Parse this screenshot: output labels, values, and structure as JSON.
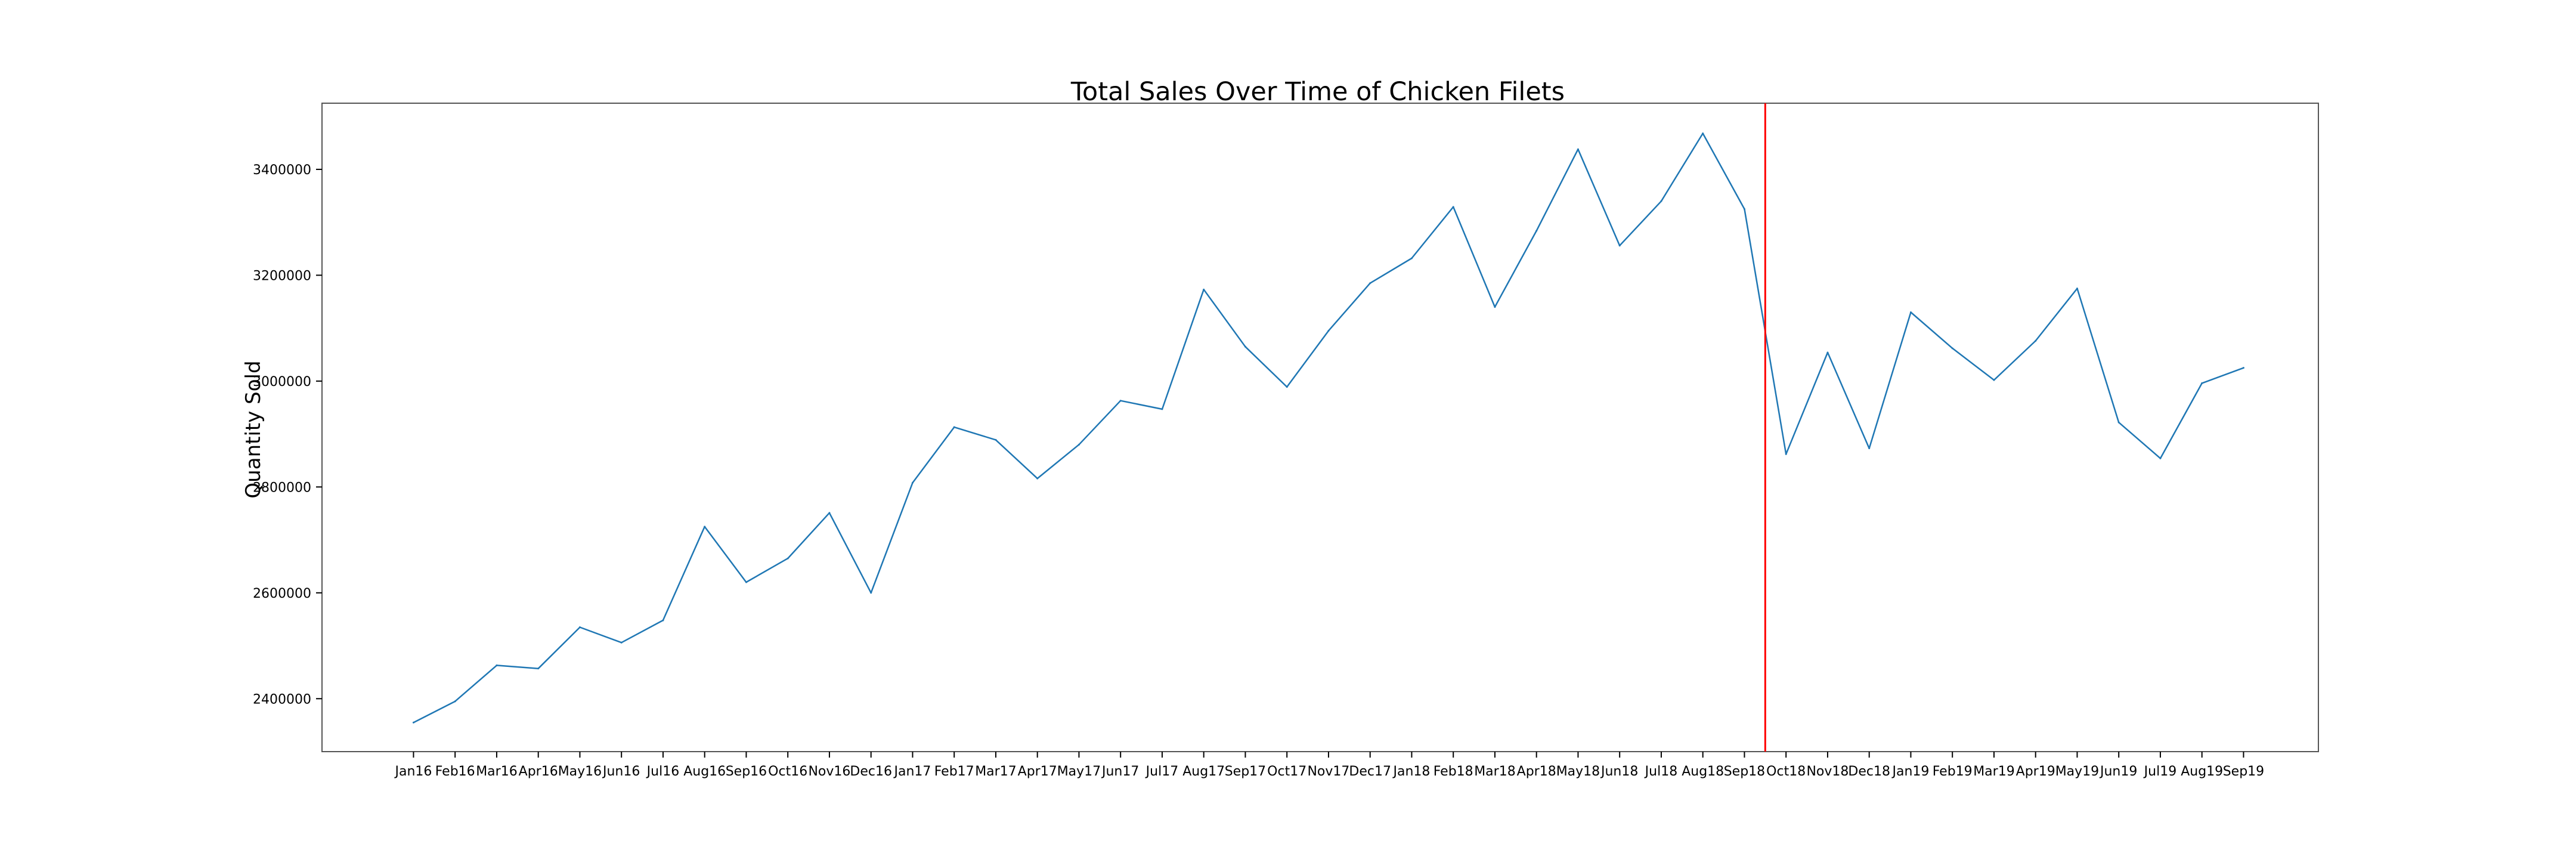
{
  "chart_data": {
    "type": "line",
    "title": "Total Sales Over Time of Chicken Filets",
    "xlabel": "",
    "ylabel": "Quantity Sold",
    "categories": [
      "Jan16",
      "Feb16",
      "Mar16",
      "Apr16",
      "May16",
      "Jun16",
      "Jul16",
      "Aug16",
      "Sep16",
      "Oct16",
      "Nov16",
      "Dec16",
      "Jan17",
      "Feb17",
      "Mar17",
      "Apr17",
      "May17",
      "Jun17",
      "Jul17",
      "Aug17",
      "Sep17",
      "Oct17",
      "Nov17",
      "Dec17",
      "Jan18",
      "Feb18",
      "Mar18",
      "Apr18",
      "May18",
      "Jun18",
      "Jul18",
      "Aug18",
      "Sep18",
      "Oct18",
      "Nov18",
      "Dec18",
      "Jan19",
      "Feb19",
      "Mar19",
      "Apr19",
      "May19",
      "Jun19",
      "Jul19",
      "Aug19",
      "Sep19"
    ],
    "series": [
      {
        "values": [
          2355000,
          2395000,
          2463000,
          2457000,
          2535000,
          2506000,
          2548000,
          2725000,
          2620000,
          2665000,
          2751000,
          2600000,
          2808000,
          2913000,
          2889000,
          2816000,
          2880000,
          2963000,
          2947000,
          3173000,
          3065000,
          2989000,
          3095000,
          3185000,
          3232000,
          3329000,
          3140000,
          3284000,
          3438000,
          3256000,
          3340000,
          3468000,
          3325000,
          2862000,
          3054000,
          2873000,
          3130000,
          3062000,
          3002000,
          3076000,
          3175000,
          2922000,
          2854000,
          2996000,
          3025000
        ],
        "color": "#1f77b4"
      }
    ],
    "ylim": [
      2300000,
      3525000
    ],
    "xlim": [
      -2.2,
      45.8
    ],
    "yticks": [
      2400000,
      2600000,
      2800000,
      3000000,
      3200000,
      3400000
    ],
    "ytick_labels": [
      "2400000",
      "2600000",
      "2800000",
      "3000000",
      "3200000",
      "3400000"
    ],
    "reference_line": {
      "orientation": "vertical",
      "x": 32.5,
      "color": "#ff0000"
    },
    "grid": false,
    "legend": "none"
  }
}
